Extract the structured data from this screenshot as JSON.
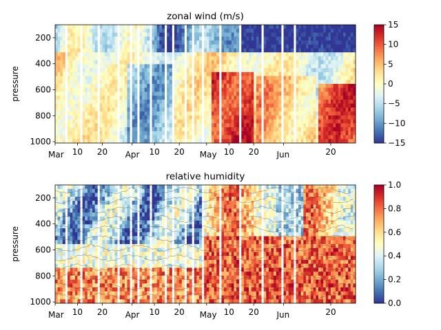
{
  "chart_data": [
    {
      "type": "heatmap",
      "title": "zonal wind (m/s)",
      "ylabel": "pressure",
      "x_ticks": [
        "Mar",
        "10",
        "20",
        "Apr",
        "10",
        "20",
        "May",
        "10",
        "20",
        "Jun",
        "20"
      ],
      "x_tick_days": [
        0,
        9,
        19,
        31,
        40,
        50,
        61,
        70,
        80,
        92,
        111
      ],
      "x_range_days": [
        0,
        121
      ],
      "y_ticks": [
        200,
        400,
        600,
        800,
        1000
      ],
      "ylim": [
        1010,
        100
      ],
      "y_inverted": true,
      "colormap": "RdYlBu_r",
      "colorbar": {
        "ticks": [
          "−15",
          "−10",
          "−5",
          "0",
          "5",
          "10",
          "15"
        ],
        "range": [
          -15,
          15
        ]
      },
      "description_pattern": "strong easterlies (blue) in upper levels late May–June; strong westerlies (red) below 500 hPa in mid-May and late June"
    },
    {
      "type": "heatmap",
      "title": "relative humidity",
      "ylabel": "pressure",
      "x_ticks": [
        "Mar",
        "10",
        "20",
        "Apr",
        "10",
        "20",
        "May",
        "10",
        "20",
        "Jun",
        "20"
      ],
      "x_tick_days": [
        0,
        9,
        19,
        31,
        40,
        50,
        61,
        70,
        80,
        92,
        111
      ],
      "x_range_days": [
        0,
        121
      ],
      "y_ticks": [
        200,
        400,
        600,
        800,
        1000
      ],
      "ylim": [
        1010,
        100
      ],
      "y_inverted": true,
      "colormap": "RdYlBu_r",
      "colorbar": {
        "ticks": [
          "0.0",
          "0.2",
          "0.4",
          "0.6",
          "0.8",
          "1.0"
        ],
        "range": [
          0,
          1
        ]
      },
      "overlay": "thin black contour lines",
      "description_pattern": "dry (blue) in mid-levels during March–April, moist (red) in lower levels especially May onward"
    }
  ]
}
